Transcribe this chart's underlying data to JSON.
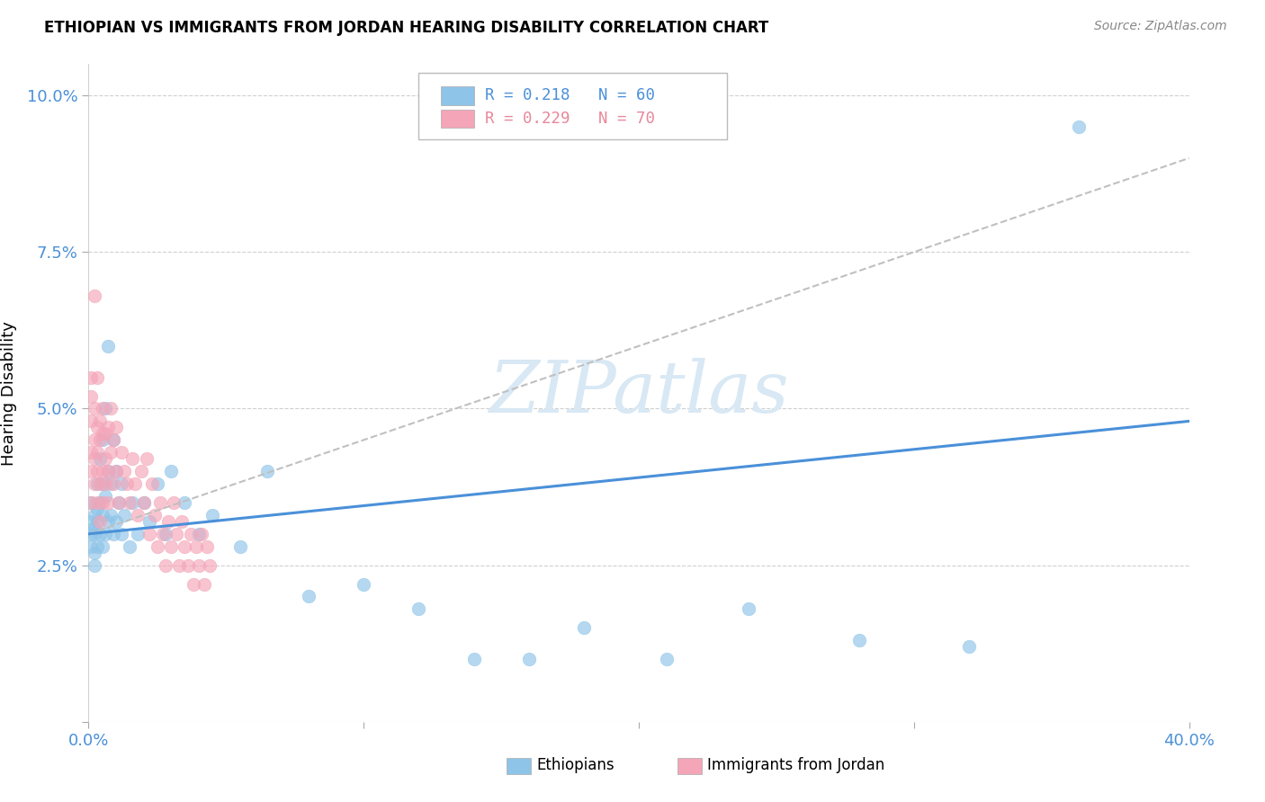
{
  "title": "ETHIOPIAN VS IMMIGRANTS FROM JORDAN HEARING DISABILITY CORRELATION CHART",
  "source": "Source: ZipAtlas.com",
  "ylabel": "Hearing Disability",
  "xlim": [
    0.0,
    0.4
  ],
  "ylim": [
    0.0,
    0.105
  ],
  "xtick_vals": [
    0.0,
    0.1,
    0.2,
    0.3,
    0.4
  ],
  "ytick_vals": [
    0.0,
    0.025,
    0.05,
    0.075,
    0.1
  ],
  "ethiopians_R": "0.218",
  "ethiopians_N": "60",
  "jordan_R": "0.229",
  "jordan_N": "70",
  "blue_scatter_color": "#8ec4e8",
  "pink_scatter_color": "#f4a5b8",
  "blue_line_color": "#4a90d9",
  "pink_line_color": "#e8879a",
  "tick_label_color": "#4a90d9",
  "grid_color": "#d0d0d0",
  "watermark_color": "#d8e8f4",
  "ethiopians_x": [
    0.001,
    0.001,
    0.001,
    0.001,
    0.002,
    0.002,
    0.002,
    0.002,
    0.002,
    0.003,
    0.003,
    0.003,
    0.003,
    0.004,
    0.004,
    0.004,
    0.005,
    0.005,
    0.005,
    0.005,
    0.006,
    0.006,
    0.006,
    0.007,
    0.007,
    0.007,
    0.008,
    0.008,
    0.009,
    0.009,
    0.01,
    0.01,
    0.011,
    0.012,
    0.012,
    0.013,
    0.015,
    0.016,
    0.018,
    0.02,
    0.022,
    0.025,
    0.028,
    0.03,
    0.035,
    0.04,
    0.045,
    0.055,
    0.065,
    0.08,
    0.1,
    0.12,
    0.14,
    0.16,
    0.18,
    0.21,
    0.24,
    0.28,
    0.32,
    0.36
  ],
  "ethiopians_y": [
    0.032,
    0.028,
    0.03,
    0.035,
    0.025,
    0.03,
    0.033,
    0.027,
    0.031,
    0.034,
    0.028,
    0.032,
    0.038,
    0.03,
    0.035,
    0.042,
    0.028,
    0.033,
    0.038,
    0.045,
    0.03,
    0.036,
    0.05,
    0.032,
    0.04,
    0.06,
    0.033,
    0.038,
    0.03,
    0.045,
    0.032,
    0.04,
    0.035,
    0.03,
    0.038,
    0.033,
    0.028,
    0.035,
    0.03,
    0.035,
    0.032,
    0.038,
    0.03,
    0.04,
    0.035,
    0.03,
    0.033,
    0.028,
    0.04,
    0.02,
    0.022,
    0.018,
    0.01,
    0.01,
    0.015,
    0.01,
    0.018,
    0.013,
    0.012,
    0.095
  ],
  "jordan_x": [
    0.001,
    0.001,
    0.001,
    0.001,
    0.001,
    0.002,
    0.002,
    0.002,
    0.002,
    0.003,
    0.003,
    0.003,
    0.003,
    0.003,
    0.004,
    0.004,
    0.004,
    0.004,
    0.005,
    0.005,
    0.005,
    0.005,
    0.006,
    0.006,
    0.006,
    0.007,
    0.007,
    0.007,
    0.008,
    0.008,
    0.009,
    0.009,
    0.01,
    0.01,
    0.011,
    0.012,
    0.013,
    0.014,
    0.015,
    0.016,
    0.017,
    0.018,
    0.019,
    0.02,
    0.021,
    0.022,
    0.023,
    0.024,
    0.025,
    0.026,
    0.027,
    0.028,
    0.029,
    0.03,
    0.031,
    0.032,
    0.033,
    0.034,
    0.035,
    0.036,
    0.037,
    0.038,
    0.039,
    0.04,
    0.041,
    0.042,
    0.043,
    0.044,
    0.002,
    0.001
  ],
  "jordan_y": [
    0.04,
    0.048,
    0.035,
    0.043,
    0.052,
    0.038,
    0.045,
    0.05,
    0.042,
    0.04,
    0.047,
    0.035,
    0.043,
    0.055,
    0.038,
    0.045,
    0.032,
    0.048,
    0.04,
    0.046,
    0.035,
    0.05,
    0.042,
    0.038,
    0.046,
    0.04,
    0.047,
    0.035,
    0.043,
    0.05,
    0.038,
    0.045,
    0.04,
    0.047,
    0.035,
    0.043,
    0.04,
    0.038,
    0.035,
    0.042,
    0.038,
    0.033,
    0.04,
    0.035,
    0.042,
    0.03,
    0.038,
    0.033,
    0.028,
    0.035,
    0.03,
    0.025,
    0.032,
    0.028,
    0.035,
    0.03,
    0.025,
    0.032,
    0.028,
    0.025,
    0.03,
    0.022,
    0.028,
    0.025,
    0.03,
    0.022,
    0.028,
    0.025,
    0.068,
    0.055
  ]
}
